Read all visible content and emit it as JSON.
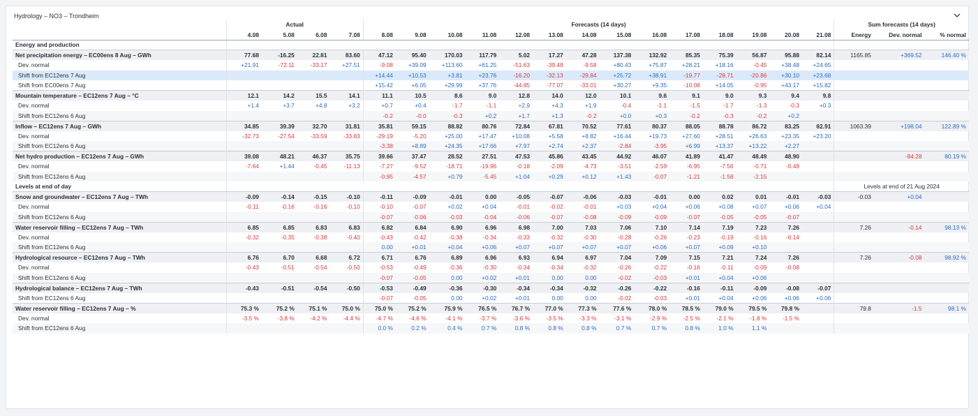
{
  "panel": {
    "title": "Hydrology – NO3 – Trondheim"
  },
  "header": {
    "group_actual": "Actual",
    "group_forecast": "Forecasts (14 days)",
    "group_sum": "Sum forecasts (14 days)",
    "dates": [
      "4.08",
      "5.08",
      "6.08",
      "7.08",
      "8.08",
      "9.08",
      "10.08",
      "11.08",
      "12.08",
      "13.08",
      "14.08",
      "15.08",
      "16.08",
      "17.08",
      "18.08",
      "19.08",
      "20.08",
      "21.08"
    ],
    "sum_cols": [
      "Energy",
      "Dev. normal",
      "% normal"
    ]
  },
  "rows": [
    {
      "type": "section",
      "label": "Energy and production",
      "sum": [
        "",
        "",
        ""
      ]
    },
    {
      "type": "main",
      "label": "Net precipitation energy – EC00ens 8 Aug – GWh",
      "values": [
        "77.68",
        "-16.25",
        "22.81",
        "83.60",
        "47.12",
        "95.40",
        "170.03",
        "117.79",
        "5.02",
        "17.27",
        "47.28",
        "137.38",
        "132.92",
        "85.35",
        "75.39",
        "56.87",
        "95.88",
        "82.14"
      ],
      "sum": [
        "1165.85",
        "+369.52",
        "146.40 %"
      ]
    },
    {
      "type": "sub",
      "label": "Dev. normal",
      "values": [
        "+21.91",
        "-72.11",
        "-33.17",
        "+27.51",
        "-9.08",
        "+39.09",
        "+113.60",
        "+61.25",
        "-51.63",
        "-39.48",
        "-9.58",
        "+80.43",
        "+75.87",
        "+28.21",
        "+18.16",
        "-0.45",
        "+38.48",
        "+24.65"
      ],
      "sum": [
        "",
        "",
        ""
      ]
    },
    {
      "type": "sub",
      "highlight": true,
      "label": "Shift from EC12ens 7 Aug",
      "values": [
        "",
        "",
        "",
        "",
        "+14.44",
        "+10.53",
        "+3.81",
        "+23.76",
        "-16.20",
        "-32.13",
        "-29.84",
        "+25.72",
        "+38.91",
        "-19.77",
        "-28.71",
        "-20.86",
        "+30.10",
        "+23.68"
      ],
      "sum": [
        "",
        "",
        ""
      ]
    },
    {
      "type": "sub",
      "label": "Shift from EC00ens 7 Aug",
      "values": [
        "",
        "",
        "",
        "",
        "+15.42",
        "+6.05",
        "+29.99",
        "+37.76",
        "-44.85",
        "-77.07",
        "-33.01",
        "+30.27",
        "+9.35",
        "-10.08",
        "+14.05",
        "-0.95",
        "+43.17",
        "+15.82"
      ],
      "sum": [
        "",
        "",
        ""
      ]
    },
    {
      "type": "main",
      "label": "Mountain temperature – EC12ens 7 Aug – °C",
      "values": [
        "12.1",
        "14.2",
        "15.5",
        "14.1",
        "11.1",
        "10.5",
        "8.6",
        "9.0",
        "12.8",
        "14.0",
        "12.0",
        "10.1",
        "9.6",
        "9.1",
        "9.0",
        "9.3",
        "9.4",
        "9.8"
      ],
      "sum": [
        "",
        "",
        ""
      ]
    },
    {
      "type": "sub",
      "label": "Dev. normal",
      "values": [
        "+1.4",
        "+3.7",
        "+4.8",
        "+3.2",
        "+0.7",
        "+0.4",
        "-1.7",
        "-1.1",
        "+2.9",
        "+4.3",
        "+1.9",
        "-0.4",
        "-1.1",
        "-1.5",
        "-1.7",
        "-1.3",
        "-0.3",
        "+0.3"
      ],
      "sum": [
        "",
        "",
        ""
      ]
    },
    {
      "type": "sub",
      "label": "Shift from EC12ens 6 Aug",
      "values": [
        "",
        "",
        "",
        "",
        "-0.2",
        "-0.0",
        "-0.3",
        "+0.2",
        "+1.7",
        "+1.3",
        "-0.2",
        "+0.0",
        "+0.3",
        "-0.2",
        "-0.3",
        "-0.2",
        "+0.2",
        ""
      ],
      "sum": [
        "",
        "",
        ""
      ]
    },
    {
      "type": "main",
      "label": "Inflow – EC12ens 7 Aug – GWh",
      "values": [
        "34.85",
        "39.39",
        "32.70",
        "31.81",
        "35.81",
        "59.15",
        "88.82",
        "80.76",
        "72.84",
        "67.81",
        "70.52",
        "77.61",
        "80.37",
        "88.05",
        "88.78",
        "86.72",
        "83.25",
        "82.91"
      ],
      "sum": [
        "1063.39",
        "+198.04",
        "122.89 %"
      ]
    },
    {
      "type": "sub",
      "label": "Dev. normal",
      "values": [
        "-32.73",
        "-27.54",
        "-33.59",
        "-33.83",
        "-29.19",
        "-5.20",
        "+25.00",
        "+17.47",
        "+10.08",
        "+5.58",
        "+8.82",
        "+16.44",
        "+19.73",
        "+27.60",
        "+28.51",
        "+26.63",
        "+23.35",
        "+23.20"
      ],
      "sum": [
        "",
        "",
        ""
      ]
    },
    {
      "type": "sub",
      "label": "Shift from EC12ens 6 Aug",
      "values": [
        "",
        "",
        "",
        "",
        "-3.38",
        "+8.89",
        "+24.35",
        "+17.66",
        "+7.97",
        "+2.74",
        "+2.37",
        "-2.84",
        "-3.95",
        "+6.99",
        "+13.37",
        "+13.22",
        "+2.27",
        ""
      ],
      "sum": [
        "",
        "",
        ""
      ]
    },
    {
      "type": "main",
      "label": "Net hydro production – EC12ens 7 Aug – GWh",
      "values": [
        "39.08",
        "48.21",
        "46.37",
        "35.75",
        "39.66",
        "37.47",
        "28.52",
        "27.51",
        "47.53",
        "45.86",
        "43.45",
        "44.92",
        "46.07",
        "41.89",
        "41.47",
        "48.49",
        "48.90",
        ""
      ],
      "sum": [
        "",
        "-84.28",
        "80.19 %"
      ]
    },
    {
      "type": "sub",
      "label": "Dev. normal",
      "values": [
        "-7.64",
        "+1.44",
        "-0.45",
        "-11.13",
        "-7.27",
        "-9.52",
        "-18.71",
        "-19.96",
        "-0.18",
        "-2.09",
        "-4.73",
        "-3.51",
        "-2.59",
        "-6.95",
        "-7.56",
        "-0.71",
        "-0.48",
        ""
      ],
      "sum": [
        "",
        "",
        ""
      ]
    },
    {
      "type": "sub",
      "label": "Shift from EC12ens 6 Aug",
      "values": [
        "",
        "",
        "",
        "",
        "-0.95",
        "-4.57",
        "+0.79",
        "-5.45",
        "+1.04",
        "+0.29",
        "+0.12",
        "+1.43",
        "-0.07",
        "-1.21",
        "-1.58",
        "-2.15",
        "",
        ""
      ],
      "sum": [
        "",
        "",
        ""
      ]
    },
    {
      "type": "section",
      "label": "Levels at end of day",
      "sum_span": "Levels at end of 21 Aug 2024",
      "sum": [
        "",
        "",
        ""
      ]
    },
    {
      "type": "main",
      "label": "Snow and groundwater – EC12ens 7 Aug – TWh",
      "values": [
        "-0.09",
        "-0.14",
        "-0.15",
        "-0.10",
        "-0.11",
        "-0.09",
        "-0.01",
        "0.00",
        "-0.05",
        "-0.07",
        "-0.06",
        "-0.03",
        "-0.01",
        "0.00",
        "0.02",
        "0.01",
        "-0.01",
        "-0.03"
      ],
      "sum": [
        "-0.03",
        "+0.04",
        ""
      ]
    },
    {
      "type": "sub",
      "label": "Dev. normal",
      "values": [
        "-0.11",
        "-0.16",
        "-0.16",
        "-0.10",
        "-0.10",
        "-0.07",
        "+0.02",
        "+0.04",
        "-0.01",
        "-0.02",
        "-0.01",
        "+0.03",
        "+0.04",
        "+0.06",
        "+0.08",
        "+0.07",
        "+0.06",
        "+0.04"
      ],
      "sum": [
        "",
        "",
        ""
      ]
    },
    {
      "type": "sub",
      "label": "Shift from EC12ens 6 Aug",
      "values": [
        "",
        "",
        "",
        "",
        "-0.07",
        "-0.06",
        "-0.03",
        "-0.04",
        "-0.06",
        "-0.07",
        "-0.08",
        "-0.09",
        "-0.09",
        "-0.07",
        "-0.05",
        "-0.05",
        "-0.07",
        ""
      ],
      "sum": [
        "",
        "",
        ""
      ]
    },
    {
      "type": "main",
      "label": "Water reservoir filling – EC12ens 7 Aug – TWh",
      "values": [
        "6.85",
        "6.85",
        "6.83",
        "6.83",
        "6.82",
        "6.84",
        "6.90",
        "6.96",
        "6.98",
        "7.00",
        "7.03",
        "7.06",
        "7.10",
        "7.14",
        "7.19",
        "7.23",
        "7.26",
        ""
      ],
      "sum": [
        "7.26",
        "-0.14",
        "98.13 %"
      ]
    },
    {
      "type": "sub",
      "label": "Dev. normal",
      "values": [
        "-0.32",
        "-0.35",
        "-0.38",
        "-0.40",
        "-0.43",
        "-0.42",
        "-0.38",
        "-0.34",
        "-0.33",
        "-0.32",
        "-0.30",
        "-0.28",
        "-0.26",
        "-0.23",
        "-0.19",
        "-0.16",
        "-0.14",
        ""
      ],
      "sum": [
        "",
        "",
        ""
      ]
    },
    {
      "type": "sub",
      "label": "Shift from EC12ens 6 Aug",
      "values": [
        "",
        "",
        "",
        "",
        "0.00",
        "+0.01",
        "+0.04",
        "+0.06",
        "+0.07",
        "+0.07",
        "+0.07",
        "+0.07",
        "+0.06",
        "+0.07",
        "+0.09",
        "+0.10",
        "",
        ""
      ],
      "sum": [
        "",
        "",
        ""
      ]
    },
    {
      "type": "main",
      "label": "Hydrological resource – EC12ens 7 Aug – TWh",
      "values": [
        "6.76",
        "6.70",
        "6.68",
        "6.72",
        "6.71",
        "6.76",
        "6.89",
        "6.96",
        "6.93",
        "6.94",
        "6.97",
        "7.04",
        "7.09",
        "7.15",
        "7.21",
        "7.24",
        "7.26",
        ""
      ],
      "sum": [
        "7.26",
        "-0.08",
        "98.92 %"
      ]
    },
    {
      "type": "sub",
      "label": "Dev. normal",
      "values": [
        "-0.43",
        "-0.51",
        "-0.54",
        "-0.50",
        "-0.53",
        "-0.49",
        "-0.36",
        "-0.30",
        "-0.34",
        "-0.34",
        "-0.32",
        "-0.26",
        "-0.22",
        "-0.16",
        "-0.11",
        "-0.09",
        "-0.08",
        ""
      ],
      "sum": [
        "",
        "",
        ""
      ]
    },
    {
      "type": "sub",
      "label": "Shift from EC12ens 6 Aug",
      "values": [
        "",
        "",
        "",
        "",
        "-0.07",
        "-0.05",
        "0.00",
        "+0.02",
        "+0.01",
        "0.00",
        "0.00",
        "-0.02",
        "-0.03",
        "+0.01",
        "+0.04",
        "+0.06",
        "",
        ""
      ],
      "sum": [
        "",
        "",
        ""
      ]
    },
    {
      "type": "main",
      "label": "Hydrological balance – EC12ens 7 Aug – TWh",
      "values": [
        "-0.43",
        "-0.51",
        "-0.54",
        "-0.50",
        "-0.53",
        "-0.49",
        "-0.36",
        "-0.30",
        "-0.34",
        "-0.34",
        "-0.32",
        "-0.26",
        "-0.22",
        "-0.16",
        "-0.11",
        "-0.09",
        "-0.08",
        "-0.07"
      ],
      "sum": [
        "",
        "",
        ""
      ]
    },
    {
      "type": "sub",
      "label": "Shift from EC12ens 6 Aug",
      "values": [
        "",
        "",
        "",
        "",
        "-0.07",
        "-0.05",
        "0.00",
        "+0.02",
        "+0.01",
        "0.00",
        "0.00",
        "-0.02",
        "-0.03",
        "+0.01",
        "+0.04",
        "+0.06",
        "+0.06",
        "+0.06"
      ],
      "sum": [
        "",
        "",
        ""
      ]
    },
    {
      "type": "main",
      "label": "Water reservoir filling – EC12ens 7 Aug – %",
      "values": [
        "75.3 %",
        "75.2 %",
        "75.1 %",
        "75.0 %",
        "75.0 %",
        "75.2 %",
        "75.9 %",
        "76.5 %",
        "76.7 %",
        "77.0 %",
        "77.3 %",
        "77.6 %",
        "78.0 %",
        "78.5 %",
        "79.0 %",
        "79.5 %",
        "79.8 %",
        ""
      ],
      "sum": [
        "79.8",
        "-1.5",
        "98.1 %"
      ]
    },
    {
      "type": "sub",
      "label": "Dev. normal",
      "values": [
        "-3.5 %",
        "-3.8 %",
        "-4.2 %",
        "-4.4 %",
        "-4.7 %",
        "-4.6 %",
        "-4.1 %",
        "-3.7 %",
        "-3.6 %",
        "-3.5 %",
        "-3.3 %",
        "-3.1 %",
        "-2.9 %",
        "-2.5 %",
        "-2.1 %",
        "-1.8 %",
        "-1.5 %",
        ""
      ],
      "sum": [
        "",
        "",
        ""
      ]
    },
    {
      "type": "sub",
      "label": "Shift from EC12ens 6 Aug",
      "values": [
        "",
        "",
        "",
        "",
        "0.0 %",
        "0.2 %",
        "0.4 %",
        "0.7 %",
        "0.8 %",
        "0.8 %",
        "0.8 %",
        "0.7 %",
        "0.7 %",
        "0.8 %",
        "1.0 %",
        "1.1 %",
        "",
        ""
      ],
      "sum": [
        "",
        "",
        ""
      ]
    }
  ],
  "colors": {
    "positive": "#2a6ac2",
    "negative": "#d9383c",
    "highlight_row": "#dbeafa",
    "main_row": "#eef0f3"
  },
  "icons": {
    "collapse": "chevron-down-icon"
  }
}
